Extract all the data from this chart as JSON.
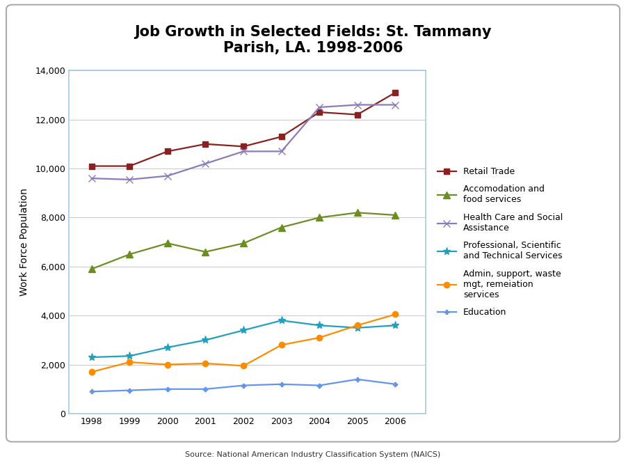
{
  "title": "Job Growth in Selected Fields: St. Tammany\nParish, LA. 1998-2006",
  "ylabel": "Work Force Population",
  "source": "Source: National American Industry Classification System (NAICS)",
  "years": [
    1998,
    1999,
    2000,
    2001,
    2002,
    2003,
    2004,
    2005,
    2006
  ],
  "series": [
    {
      "label": "Retail Trade",
      "color": "#8B2020",
      "marker": "s",
      "markersize": 6,
      "values": [
        10100,
        10100,
        10700,
        11000,
        10900,
        11300,
        12300,
        12200,
        13100
      ]
    },
    {
      "label": "Accomodation and\nfood services",
      "color": "#6B8E23",
      "marker": "^",
      "markersize": 7,
      "values": [
        5900,
        6500,
        6950,
        6600,
        6950,
        7600,
        8000,
        8200,
        8100
      ]
    },
    {
      "label": "Health Care and Social\nAssistance",
      "color": "#8B7BB8",
      "marker": "x",
      "markersize": 7,
      "values": [
        9600,
        9550,
        9700,
        10200,
        10700,
        10700,
        12500,
        12600,
        12600
      ]
    },
    {
      "label": "Professional, Scientific\nand Technical Services",
      "color": "#20A0C0",
      "marker": "*",
      "markersize": 8,
      "values": [
        2300,
        2350,
        2700,
        3000,
        3400,
        3800,
        3600,
        3500,
        3600
      ]
    },
    {
      "label": "Admin, support, waste\nmgt, remeiation\nservices",
      "color": "#FF8C00",
      "marker": "o",
      "markersize": 6,
      "values": [
        1700,
        2100,
        2000,
        2050,
        1950,
        2800,
        3100,
        3600,
        4050
      ]
    },
    {
      "label": "Education",
      "color": "#6495ED",
      "marker": "P",
      "markersize": 5,
      "values": [
        900,
        950,
        1000,
        1000,
        1150,
        1200,
        1150,
        1400,
        1200
      ]
    }
  ],
  "ylim": [
    0,
    14000
  ],
  "yticks": [
    0,
    2000,
    4000,
    6000,
    8000,
    10000,
    12000,
    14000
  ],
  "plot_spine_color": "#A8C8E8",
  "grid_color": "#C8C8C8",
  "outer_border_color": "#AAAAAA",
  "background_color": "#FFFFFF",
  "title_fontsize": 15,
  "axis_label_fontsize": 10,
  "tick_fontsize": 9,
  "legend_fontsize": 9,
  "source_fontsize": 8
}
